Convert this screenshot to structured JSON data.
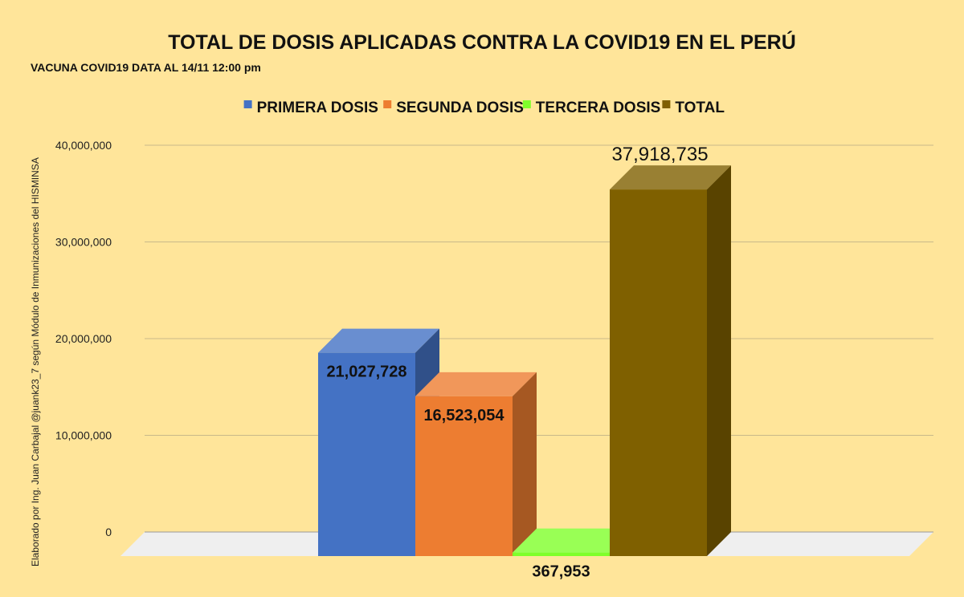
{
  "chart_data": {
    "type": "bar",
    "title": "TOTAL DE DOSIS APLICADAS CONTRA LA COVID19 EN EL PERÚ",
    "subtitle": "VACUNA COVID19 DATA AL 14/11 12:00 pm",
    "side_label": "Elaborado por Ing. Juan Carbajal @juank23_7 según Módulo de Inmunizaciones del HISMINSA",
    "categories": [
      "PRIMERA DOSIS",
      "SEGUNDA DOSIS",
      "TERCERA DOSIS",
      "TOTAL"
    ],
    "values": [
      21027728,
      16523054,
      367953,
      37918735
    ],
    "value_labels": [
      "21,027,728",
      "16,523,054",
      "367,953",
      "37,918,735"
    ],
    "colors": [
      "#4472c4",
      "#ed7d31",
      "#7fff2a",
      "#7f6000"
    ],
    "ylim": [
      0,
      40000000
    ],
    "yticks": [
      0,
      10000000,
      20000000,
      30000000,
      40000000
    ],
    "ytick_labels": [
      "0",
      "10,000,000",
      "20,000,000",
      "30,000,000",
      "40,000,000"
    ],
    "xlabel": "",
    "ylabel": "",
    "legend_position": "top-center",
    "grid": true
  }
}
